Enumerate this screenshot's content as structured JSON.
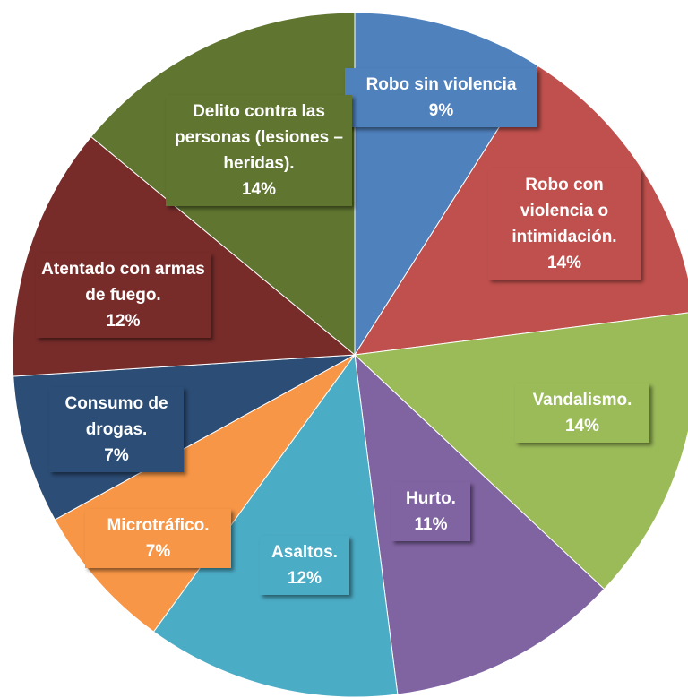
{
  "chart_data": {
    "type": "pie",
    "categories": [
      "Robo sin violencia",
      "Robo con violencia o intimidación.",
      "Vandalismo.",
      "Hurto.",
      "Asaltos.",
      "Microtráfico.",
      "Consumo de drogas.",
      "Atentado con armas de fuego.",
      "Delito contra las personas (lesiones – heridas)."
    ],
    "values": [
      9,
      14,
      14,
      11,
      12,
      7,
      7,
      12,
      14
    ],
    "value_labels": [
      "9%",
      "14%",
      "14%",
      "11%",
      "12%",
      "7%",
      "7%",
      "12%",
      "14%"
    ],
    "colors": [
      "#4f81bd",
      "#c0504d",
      "#9bbb59",
      "#8064a2",
      "#4bacc6",
      "#f79646",
      "#2c4d75",
      "#772c2a",
      "#5f7530"
    ]
  }
}
